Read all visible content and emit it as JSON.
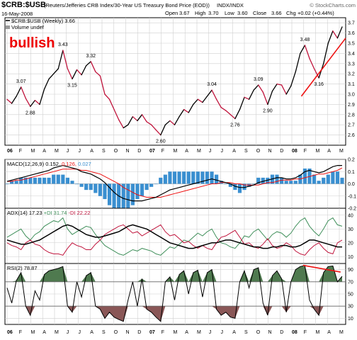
{
  "header": {
    "symbol": "$CRB:$USB",
    "description": "(Reuters/Jefferies CRB Index/30-Year US Treasury Bond Price (EOD))",
    "exchange": "INDX/INDX",
    "credit": "© StockCharts.com",
    "date": "16-May-2008",
    "open_label": "Open",
    "open": "3.67",
    "high_label": "High",
    "high": "3.70",
    "low_label": "Low",
    "low": "3.60",
    "close_label": "Close",
    "close": "3.66",
    "chg_label": "Chg",
    "chg": "+0.02 (+0.44%)",
    "legend_series": "$CRB:$USB (Weekly) 3.66",
    "legend_volume": "Volume undef"
  },
  "annotation_text": "bullish",
  "colors": {
    "up": "#000000",
    "down": "#c0143c",
    "trendline": "#ee1111",
    "annotation": "#ee0000",
    "macd_hist": "#3a8fd0",
    "macd_signal": "#ee1111",
    "adx": "#000000",
    "pdi": "#3f8f5a",
    "mdi": "#c0143c",
    "rsi_fill_over": "#4f7a4f",
    "rsi_fill_under": "#8a5757",
    "grid": "#cfcfcf"
  },
  "chart_data": [
    {
      "type": "line",
      "panel": "price",
      "title": "$CRB:$USB (Weekly) 3.66",
      "ylim": [
        2.5,
        3.75
      ],
      "yticks": [
        "3.7",
        "3.6",
        "3.5",
        "3.4",
        "3.3",
        "3.2",
        "3.1",
        "3.0",
        "2.9",
        "2.8",
        "2.7",
        "2.6"
      ],
      "annotations": [
        "3.07",
        "2.88",
        "3.43",
        "3.15",
        "3.32",
        "2.60",
        "3.04",
        "2.76",
        "3.09",
        "2.90",
        "3.48",
        "3.16"
      ],
      "trendline": {
        "from": [
          0.87,
          2.98
        ],
        "to": [
          1.0,
          3.55
        ]
      },
      "series": [
        {
          "values": [
            2.95,
            2.91,
            2.98,
            3.07,
            2.96,
            2.88,
            2.94,
            2.9,
            3.05,
            3.15,
            3.2,
            3.25,
            3.43,
            3.25,
            3.15,
            3.24,
            3.19,
            3.28,
            3.32,
            3.22,
            3.18,
            3.0,
            2.95,
            2.85,
            2.75,
            2.67,
            2.7,
            2.78,
            2.74,
            2.8,
            2.73,
            2.7,
            2.65,
            2.6,
            2.7,
            2.74,
            2.7,
            2.78,
            2.85,
            2.82,
            2.9,
            2.95,
            2.92,
            2.98,
            3.04,
            2.95,
            2.87,
            2.84,
            2.8,
            2.76,
            2.85,
            2.97,
            2.95,
            3.04,
            3.09,
            3.02,
            2.9,
            3.03,
            3.1,
            3.09,
            3.0,
            3.08,
            3.22,
            3.4,
            3.48,
            3.35,
            3.25,
            3.16,
            3.3,
            3.5,
            3.62,
            3.55,
            3.66
          ]
        }
      ]
    },
    {
      "type": "line",
      "panel": "macd",
      "title": "MACD(12,26,9) 0.152, 0.126, 0.027",
      "legend": [
        "MACD(12,26,9)",
        "0.152",
        "0.126",
        "0.027"
      ],
      "ylim": [
        -0.2,
        0.2
      ],
      "yticks": [
        "0.2",
        "0.1",
        "0.0",
        "-0.1",
        "-0.2"
      ],
      "series": [
        {
          "name": "MACD",
          "values": [
            0.02,
            0.03,
            0.04,
            0.05,
            0.06,
            0.07,
            0.08,
            0.09,
            0.1,
            0.11,
            0.13,
            0.14,
            0.15,
            0.14,
            0.13,
            0.12,
            0.1,
            0.09,
            0.08,
            0.06,
            0.04,
            0.01,
            -0.03,
            -0.07,
            -0.1,
            -0.12,
            -0.13,
            -0.14,
            -0.14,
            -0.14,
            -0.13,
            -0.12,
            -0.11,
            -0.09,
            -0.07,
            -0.05,
            -0.04,
            -0.03,
            -0.02,
            -0.01,
            0.0,
            0.01,
            0.02,
            0.03,
            0.04,
            0.03,
            0.02,
            0.01,
            0.0,
            -0.02,
            -0.03,
            -0.03,
            -0.02,
            -0.01,
            0.01,
            0.02,
            0.03,
            0.04,
            0.05,
            0.05,
            0.04,
            0.04,
            0.05,
            0.07,
            0.1,
            0.11,
            0.1,
            0.09,
            0.1,
            0.12,
            0.14,
            0.15,
            0.15
          ]
        },
        {
          "name": "Signal",
          "values": [
            0.02,
            0.02,
            0.03,
            0.03,
            0.04,
            0.05,
            0.06,
            0.07,
            0.08,
            0.09,
            0.1,
            0.11,
            0.12,
            0.12,
            0.12,
            0.12,
            0.11,
            0.11,
            0.1,
            0.09,
            0.08,
            0.06,
            0.04,
            0.02,
            0.0,
            -0.03,
            -0.05,
            -0.07,
            -0.09,
            -0.1,
            -0.11,
            -0.11,
            -0.11,
            -0.11,
            -0.1,
            -0.09,
            -0.08,
            -0.07,
            -0.06,
            -0.05,
            -0.04,
            -0.03,
            -0.02,
            -0.01,
            0.0,
            0.0,
            0.01,
            0.01,
            0.01,
            0.0,
            0.0,
            -0.01,
            -0.01,
            -0.01,
            -0.01,
            0.0,
            0.01,
            0.01,
            0.02,
            0.03,
            0.03,
            0.03,
            0.04,
            0.04,
            0.05,
            0.06,
            0.07,
            0.08,
            0.08,
            0.09,
            0.1,
            0.11,
            0.13
          ]
        }
      ]
    },
    {
      "type": "line",
      "panel": "adx",
      "title": "ADX(14) 17.23 +DI 31.74 -DI 22.22",
      "legend": [
        "ADX(14) 17.23",
        "+DI 31.74",
        "-DI 22.22"
      ],
      "ylim": [
        5,
        45
      ],
      "yticks": [
        "40",
        "30",
        "20",
        "10"
      ],
      "series": [
        {
          "name": "ADX(14)",
          "values": [
            22,
            21,
            20,
            19,
            19,
            20,
            21,
            22,
            24,
            26,
            28,
            30,
            32,
            33,
            32,
            30,
            28,
            26,
            25,
            24,
            24,
            25,
            26,
            27,
            28,
            30,
            32,
            33,
            32,
            31,
            30,
            28,
            26,
            24,
            22,
            20,
            19,
            18,
            17,
            16,
            16,
            17,
            18,
            19,
            20,
            20,
            21,
            22,
            22,
            21,
            20,
            19,
            18,
            17,
            17,
            16,
            16,
            17,
            17,
            18,
            18,
            17,
            17,
            18,
            20,
            22,
            22,
            21,
            20,
            19,
            18,
            17,
            17
          ]
        },
        {
          "name": "+DI",
          "values": [
            24,
            26,
            28,
            30,
            25,
            22,
            26,
            28,
            32,
            34,
            36,
            35,
            38,
            30,
            26,
            28,
            30,
            32,
            31,
            26,
            22,
            18,
            16,
            14,
            12,
            11,
            13,
            15,
            14,
            16,
            15,
            14,
            12,
            11,
            14,
            17,
            16,
            19,
            22,
            21,
            24,
            27,
            25,
            28,
            30,
            24,
            20,
            19,
            17,
            16,
            20,
            25,
            24,
            28,
            30,
            26,
            22,
            26,
            28,
            27,
            24,
            27,
            32,
            36,
            38,
            32,
            28,
            25,
            30,
            36,
            38,
            33,
            32
          ]
        },
        {
          "name": "-DI",
          "values": [
            20,
            18,
            17,
            15,
            20,
            22,
            19,
            18,
            15,
            13,
            12,
            12,
            11,
            16,
            20,
            18,
            17,
            15,
            15,
            19,
            22,
            26,
            28,
            30,
            32,
            33,
            30,
            27,
            28,
            25,
            27,
            29,
            31,
            33,
            28,
            25,
            26,
            23,
            20,
            21,
            18,
            16,
            18,
            16,
            15,
            20,
            24,
            25,
            27,
            29,
            24,
            19,
            20,
            17,
            16,
            19,
            23,
            18,
            16,
            17,
            20,
            18,
            14,
            12,
            11,
            15,
            18,
            20,
            16,
            13,
            12,
            20,
            22
          ]
        }
      ]
    },
    {
      "type": "area",
      "panel": "rsi",
      "title": "RSI(2) 78.87",
      "legend": [
        "RSI(2) 78.87"
      ],
      "ylim": [
        0,
        100
      ],
      "yticks": [
        "90",
        "70",
        "50",
        "30",
        "10"
      ],
      "reference_lines": [
        70,
        30
      ],
      "series": [
        {
          "name": "RSI(2)",
          "values": [
            60,
            35,
            72,
            85,
            30,
            15,
            55,
            40,
            82,
            88,
            90,
            92,
            95,
            30,
            20,
            70,
            45,
            80,
            85,
            30,
            25,
            10,
            20,
            12,
            8,
            5,
            40,
            70,
            30,
            75,
            25,
            20,
            12,
            5,
            70,
            78,
            40,
            82,
            88,
            50,
            85,
            89,
            45,
            85,
            90,
            25,
            15,
            20,
            12,
            10,
            70,
            88,
            60,
            90,
            93,
            35,
            15,
            80,
            88,
            75,
            20,
            70,
            90,
            95,
            97,
            40,
            25,
            15,
            85,
            95,
            96,
            70,
            79
          ]
        }
      ],
      "trendline": {
        "from": [
          0.875,
          97
        ],
        "to": [
          0.985,
          86
        ]
      }
    }
  ],
  "xaxis": {
    "labels": [
      "06",
      "F",
      "M",
      "A",
      "M",
      "J",
      "J",
      "A",
      "S",
      "O",
      "N",
      "D",
      "07",
      "F",
      "M",
      "A",
      "M",
      "J",
      "J",
      "A",
      "S",
      "O",
      "N",
      "D",
      "08",
      "F",
      "M",
      "A",
      "M"
    ],
    "bold_labels": [
      "06",
      "07",
      "08"
    ]
  }
}
